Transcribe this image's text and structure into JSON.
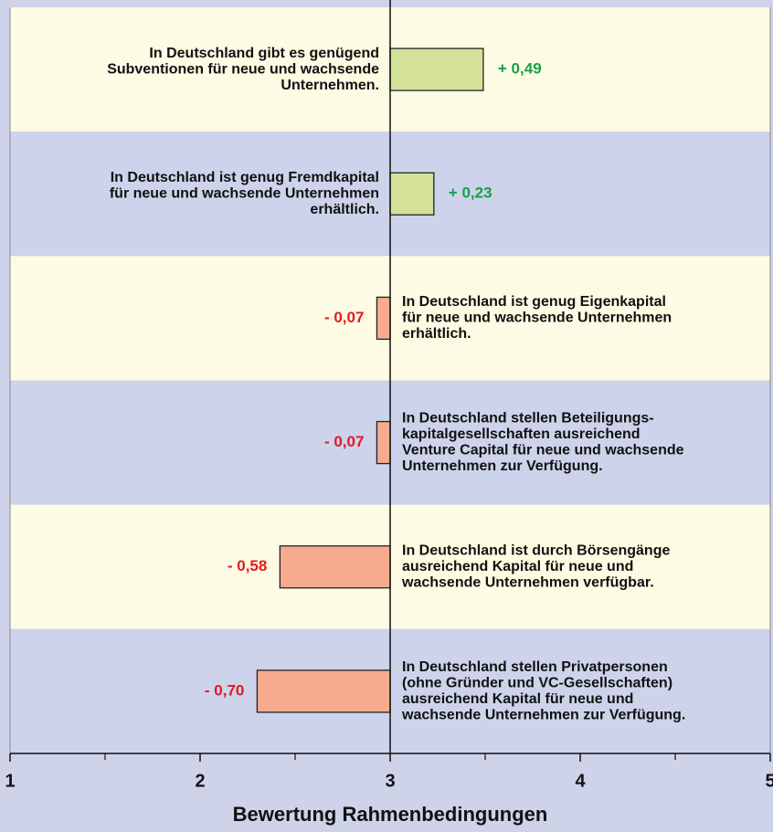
{
  "chart_data": {
    "type": "diverging-bar",
    "categories": [
      [
        "In Deutschland gibt es genügend",
        "Subventionen für neue und wachsende",
        "Unternehmen."
      ],
      [
        "In Deutschland ist genug Fremdkapital",
        "für neue und wachsende Unternehmen",
        "erhältlich."
      ],
      [
        "In Deutschland ist genug Eigenkapital",
        "für neue und wachsende Unternehmen",
        "erhältlich."
      ],
      [
        "In Deutschland stellen Beteiligungs-",
        "kapitalgesellschaften ausreichend",
        "Venture Capital für neue und wachsende",
        "Unternehmen zur Verfügung."
      ],
      [
        "In Deutschland ist durch Börsengänge",
        "ausreichend Kapital für neue und",
        "wachsende Unternehmen verfügbar."
      ],
      [
        "In Deutschland stellen Privatpersonen",
        "(ohne Gründer und VC-Gesellschaften)",
        "ausreichend Kapital für neue und",
        "wachsende Unternehmen zur Verfügung."
      ]
    ],
    "values": [
      0.49,
      0.23,
      -0.07,
      -0.07,
      -0.58,
      -0.7
    ],
    "value_labels": [
      "+ 0,49",
      "+ 0,23",
      "- 0,07",
      "- 0,07",
      "- 0,58",
      "- 0,70"
    ],
    "baseline": 3,
    "xlim": [
      1,
      5
    ],
    "xticks": [
      1,
      2,
      3,
      4,
      5
    ],
    "xminorticks": [
      1.5,
      2.5,
      3.5,
      4.5
    ],
    "xlabel": "Bewertung Rahmenbedingungen",
    "positive_color": "#d4e29a",
    "negative_color": "#f6aa8e",
    "positive_label_color": "#17a04a",
    "negative_label_color": "#e3191e",
    "row_colors": [
      "#fdfbe3",
      "#cdd3eb"
    ]
  }
}
